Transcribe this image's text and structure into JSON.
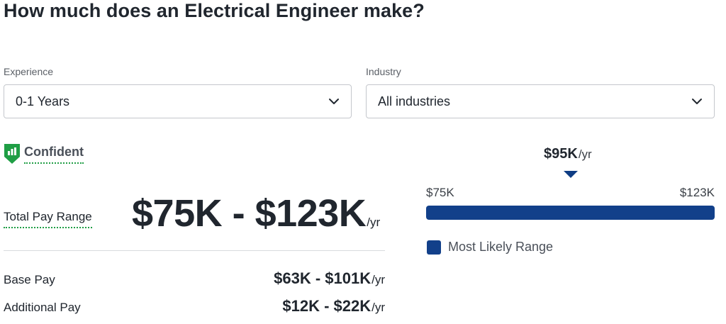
{
  "page": {
    "title": "How much does an Electrical Engineer make?"
  },
  "filters": {
    "experience": {
      "label": "Experience",
      "value": "0-1 Years",
      "icon": "chevron-down-icon"
    },
    "industry": {
      "label": "Industry",
      "value": "All industries",
      "icon": "chevron-down-icon"
    }
  },
  "confidence": {
    "label": "Confident",
    "icon": "bar-chart-shield-icon",
    "color": "#1f9e45"
  },
  "total_pay": {
    "label": "Total Pay Range",
    "range": "$75K - $123K",
    "unit": "/yr"
  },
  "breakdown": [
    {
      "label": "Base Pay",
      "range": "$63K - $101K",
      "unit": "/yr"
    },
    {
      "label": "Additional Pay",
      "range": "$12K - $22K",
      "unit": "/yr"
    }
  ],
  "range_chart": {
    "median": "$95K",
    "median_unit": "/yr",
    "low_label": "$75K",
    "high_label": "$123K",
    "bar_color": "#12408a",
    "legend_label": "Most Likely Range"
  }
}
